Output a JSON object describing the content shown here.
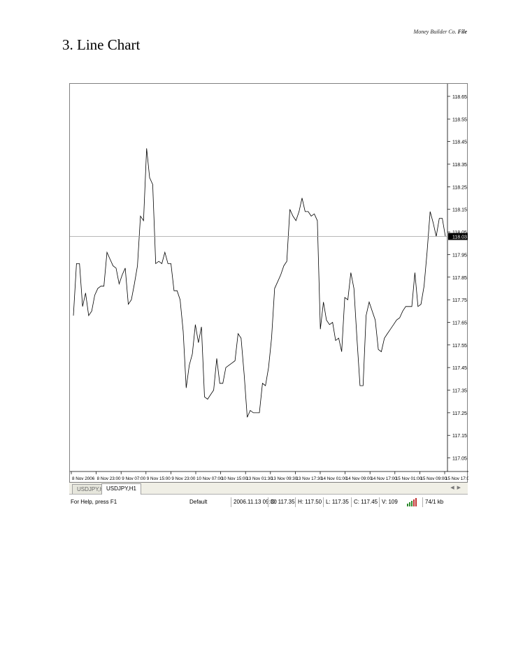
{
  "header": {
    "company": "Money Builder Co.",
    "doc_type": "File"
  },
  "section": {
    "title": "3. Line Chart"
  },
  "chart_data": {
    "type": "line",
    "symbol": "USDJPY",
    "price_ticks": [
      "118.65",
      "118.55",
      "118.45",
      "118.35",
      "118.25",
      "118.15",
      "118.05",
      "117.95",
      "117.85",
      "117.75",
      "117.65",
      "117.55",
      "117.45",
      "117.35",
      "117.25",
      "117.15",
      "117.05"
    ],
    "current_price": "118.03",
    "current_price_value": 118.03,
    "ylim": [
      116.99,
      118.69
    ],
    "time_labels": [
      "8 Nov 2006",
      "8 Nov 23:00",
      "9 Nov 07:00",
      "9 Nov 15:00",
      "9 Nov 23:00",
      "10 Nov 07:00",
      "10 Nov 15:00",
      "13 Nov 01:30",
      "13 Nov 09:30",
      "13 Nov 17:30",
      "14 Nov 01:00",
      "14 Nov 09:00",
      "14 Nov 17:00",
      "15 Nov 01:00",
      "15 Nov 09:00",
      "15 Nov 17:00"
    ],
    "series": [
      {
        "values": [
          117.68,
          117.91,
          117.91,
          117.72,
          117.78,
          117.68,
          117.7,
          117.77,
          117.8,
          117.81,
          117.81,
          117.96,
          117.93,
          117.9,
          117.89,
          117.82,
          117.86,
          117.89,
          117.73,
          117.75,
          117.82,
          117.9,
          118.12,
          118.1,
          118.42,
          118.29,
          118.26,
          117.91,
          117.92,
          117.91,
          117.96,
          117.91,
          117.91,
          117.79,
          117.79,
          117.75,
          117.61,
          117.36,
          117.46,
          117.51,
          117.64,
          117.56,
          117.63,
          117.32,
          117.31,
          117.33,
          117.35,
          117.49,
          117.38,
          117.38,
          117.45,
          117.46,
          117.47,
          117.48,
          117.6,
          117.58,
          117.42,
          117.23,
          117.26,
          117.25,
          117.25,
          117.25,
          117.38,
          117.37,
          117.45,
          117.58,
          117.8,
          117.83,
          117.86,
          117.9,
          117.92,
          118.15,
          118.12,
          118.1,
          118.14,
          118.2,
          118.14,
          118.14,
          118.12,
          118.13,
          118.1,
          117.62,
          117.74,
          117.66,
          117.64,
          117.65,
          117.57,
          117.58,
          117.52,
          117.76,
          117.75,
          117.87,
          117.8,
          117.58,
          117.37,
          117.37,
          117.68,
          117.74,
          117.7,
          117.66,
          117.53,
          117.52,
          117.58,
          117.6,
          117.62,
          117.64,
          117.66,
          117.67,
          117.7,
          117.72,
          117.72,
          117.72,
          117.87,
          117.72,
          117.73,
          117.81,
          117.96,
          118.14,
          118.09,
          118.03,
          118.11,
          118.11,
          118.03
        ]
      }
    ]
  },
  "tabs": [
    {
      "label": "USDJPY,H4",
      "active": false
    },
    {
      "label": "USDJPY,H1",
      "active": true
    }
  ],
  "status": {
    "help": "For Help, press F1",
    "profile": "Default",
    "datetime": "2006.11.13 09:30",
    "open": "O: 117.35",
    "high": "H: 117.50",
    "low": "L: 117.35",
    "close": "C: 117.45",
    "volume": "V: 109",
    "traffic": "74/1 kb"
  }
}
